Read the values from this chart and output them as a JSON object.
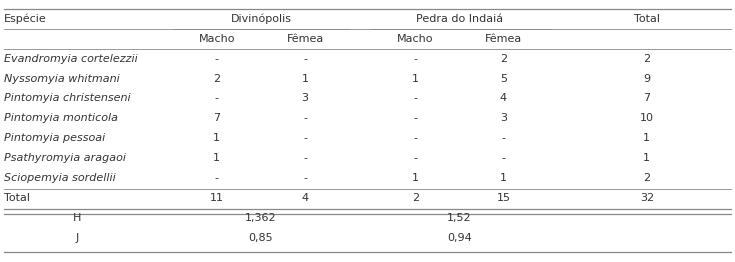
{
  "species": [
    "Evandromyia cortelezzii",
    "Nyssomyia whitmani",
    "Pintomyia christenseni",
    "Pintomyia monticola",
    "Pintomyia pessoai",
    "Psathyromyia aragaoi",
    "Sciopemyia sordellii"
  ],
  "div_macho": [
    "-",
    "2",
    "-",
    "7",
    "1",
    "1",
    "-"
  ],
  "div_femea": [
    "-",
    "1",
    "3",
    "-",
    "-",
    "-",
    "-"
  ],
  "ped_macho": [
    "-",
    "1",
    "-",
    "-",
    "-",
    "-",
    "1"
  ],
  "ped_femea": [
    "2",
    "5",
    "4",
    "3",
    "-",
    "-",
    "1"
  ],
  "totals": [
    "2",
    "9",
    "7",
    "10",
    "1",
    "1",
    "2"
  ],
  "total_row": [
    "11",
    "4",
    "2",
    "15",
    "32"
  ],
  "h_vals": [
    "1,362",
    "1,52"
  ],
  "j_vals": [
    "0,85",
    "0,94"
  ],
  "bg_color": "#ffffff",
  "text_color": "#333333",
  "line_color": "#888888",
  "font_size": 8.0
}
